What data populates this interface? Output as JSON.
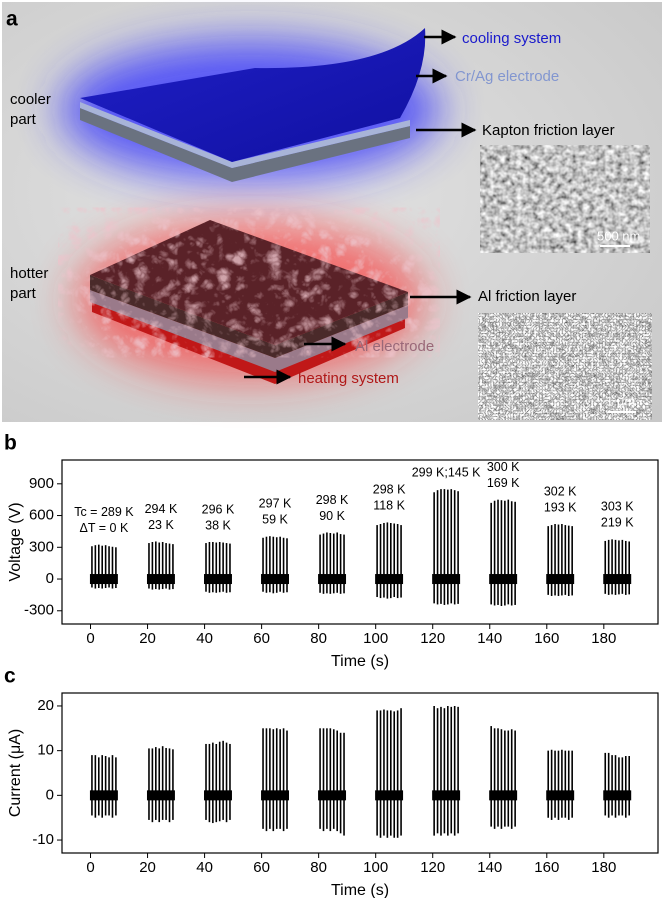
{
  "panel_a": {
    "panel": "a",
    "cooling_system": "cooling system",
    "cr_ag_electrode": "Cr/Ag electrode",
    "cooler_part": [
      "cooler",
      "part"
    ],
    "kapton_layer": "Kapton friction layer",
    "scale_1": "500 nm",
    "hotter_part": [
      "hotter",
      "part"
    ],
    "al_friction_layer": "Al friction layer",
    "al_electrode": "Al electrode",
    "heating_system": "heating system",
    "scale_2": "1 μm"
  },
  "chart_data": [
    {
      "type": "spikes",
      "panel": "b",
      "x_label": "Time (s)",
      "y_label": "Voltage (V)",
      "xlim": [
        -10,
        199
      ],
      "ylim": [
        -425,
        1125
      ],
      "xticks": [
        0,
        20,
        40,
        60,
        80,
        100,
        120,
        140,
        160,
        180
      ],
      "yticks": [
        -300,
        0,
        300,
        600,
        900
      ],
      "groups": [
        {
          "label": [
            "Tc = 289 K",
            "ΔT = 0 K"
          ],
          "x": [
            0.5,
            1.7,
            2.9,
            4.1,
            5.3,
            6.5,
            7.7,
            8.9
          ],
          "high": [
            310,
            320,
            325,
            315,
            320,
            310,
            305,
            300
          ],
          "low": [
            -80,
            -90,
            -85,
            -90,
            -85,
            -80,
            -90,
            -85
          ]
        },
        {
          "label": [
            "294 K",
            "23 K"
          ],
          "x": [
            20.5,
            21.7,
            22.9,
            24.1,
            25.3,
            26.5,
            27.7,
            28.9
          ],
          "high": [
            340,
            350,
            355,
            345,
            350,
            340,
            335,
            330
          ],
          "low": [
            -90,
            -100,
            -95,
            -100,
            -95,
            -90,
            -100,
            -95
          ]
        },
        {
          "label": [
            "296 K",
            "38 K"
          ],
          "x": [
            40.5,
            41.7,
            42.9,
            44.1,
            45.3,
            46.5,
            47.7,
            48.9
          ],
          "high": [
            340,
            350,
            350,
            345,
            350,
            345,
            340,
            335
          ],
          "low": [
            -120,
            -130,
            -125,
            -130,
            -125,
            -120,
            -130,
            -125
          ]
        },
        {
          "label": [
            "297 K",
            "59 K"
          ],
          "x": [
            60.5,
            61.7,
            62.9,
            64.1,
            65.3,
            66.5,
            67.7,
            68.9
          ],
          "high": [
            390,
            400,
            405,
            400,
            395,
            400,
            390,
            385
          ],
          "low": [
            -120,
            -130,
            -125,
            -135,
            -130,
            -120,
            -130,
            -125
          ]
        },
        {
          "label": [
            "298 K",
            "90 K"
          ],
          "x": [
            80.5,
            81.7,
            82.9,
            84.1,
            85.3,
            86.5,
            87.7,
            88.9
          ],
          "high": [
            420,
            430,
            440,
            435,
            430,
            440,
            425,
            420
          ],
          "low": [
            -130,
            -140,
            -135,
            -140,
            -135,
            -130,
            -140,
            -135
          ]
        },
        {
          "label": [
            "298 K",
            "118 K"
          ],
          "x": [
            100.5,
            101.7,
            102.9,
            104.1,
            105.3,
            106.5,
            107.7,
            108.9
          ],
          "high": [
            510,
            520,
            530,
            535,
            530,
            525,
            520,
            510
          ],
          "low": [
            -170,
            -180,
            -175,
            -185,
            -180,
            -170,
            -180,
            -175
          ]
        },
        {
          "label": [
            "299 K;145 K"
          ],
          "x": [
            120.5,
            121.7,
            122.9,
            124.1,
            125.3,
            126.5,
            127.7,
            128.9
          ],
          "high": [
            820,
            840,
            850,
            850,
            845,
            850,
            840,
            830
          ],
          "low": [
            -230,
            -240,
            -235,
            -245,
            -240,
            -230,
            -240,
            -235
          ]
        },
        {
          "label": [
            "300 K",
            "169 K"
          ],
          "x": [
            140.5,
            141.7,
            142.9,
            144.1,
            145.3,
            146.5,
            147.7,
            148.9
          ],
          "high": [
            720,
            740,
            750,
            745,
            740,
            750,
            735,
            730
          ],
          "low": [
            -240,
            -250,
            -245,
            -255,
            -250,
            -240,
            -250,
            -245
          ]
        },
        {
          "label": [
            "302 K",
            "193 K"
          ],
          "x": [
            160.5,
            161.7,
            162.9,
            164.1,
            165.3,
            166.5,
            167.7,
            168.9
          ],
          "high": [
            500,
            510,
            520,
            515,
            520,
            510,
            505,
            500
          ],
          "low": [
            -150,
            -160,
            -155,
            -160,
            -155,
            -150,
            -160,
            -155
          ]
        },
        {
          "label": [
            "303 K",
            "219 K"
          ],
          "x": [
            180.5,
            181.7,
            182.9,
            184.1,
            185.3,
            186.5,
            187.7,
            188.9
          ],
          "high": [
            360,
            370,
            375,
            370,
            365,
            370,
            360,
            355
          ],
          "low": [
            -140,
            -150,
            -145,
            -150,
            -145,
            -140,
            -150,
            -145
          ]
        }
      ]
    },
    {
      "type": "spikes",
      "panel": "c",
      "x_label": "Time (s)",
      "y_label": "Current (μA)",
      "xlim": [
        -10,
        199
      ],
      "ylim": [
        -12.9,
        22.9
      ],
      "xticks": [
        0,
        20,
        40,
        60,
        80,
        100,
        120,
        140,
        160,
        180
      ],
      "yticks": [
        -10,
        0,
        10,
        20
      ],
      "groups": [
        {
          "x": [
            0.5,
            1.7,
            2.9,
            4.1,
            5.3,
            6.5,
            7.7,
            8.9
          ],
          "high": [
            9,
            9,
            8.5,
            9,
            8.8,
            8.5,
            9,
            8.5
          ],
          "low": [
            -4.5,
            -5,
            -4.5,
            -5,
            -4.5,
            -4.5,
            -5,
            -4.5
          ]
        },
        {
          "x": [
            20.5,
            21.7,
            22.9,
            24.1,
            25.3,
            26.5,
            27.7,
            28.9
          ],
          "high": [
            10.5,
            10.5,
            10.8,
            10.5,
            11,
            10.6,
            10.5,
            10.3
          ],
          "low": [
            -5.5,
            -6,
            -5.5,
            -6,
            -5.5,
            -5.5,
            -6,
            -5.5
          ]
        },
        {
          "x": [
            40.5,
            41.7,
            42.9,
            44.1,
            45.3,
            46.5,
            47.7,
            48.9
          ],
          "high": [
            11.5,
            11.5,
            11.8,
            11.5,
            12,
            12.2,
            11.8,
            11.5
          ],
          "low": [
            -5.5,
            -6,
            -6.2,
            -6,
            -5.8,
            -5.5,
            -6,
            -5.5
          ]
        },
        {
          "x": [
            60.5,
            61.7,
            62.9,
            64.1,
            65.3,
            66.5,
            67.7,
            68.9
          ],
          "high": [
            15,
            15,
            15,
            14.8,
            15,
            14.8,
            15,
            14.5
          ],
          "low": [
            -7.5,
            -8,
            -7.5,
            -8,
            -7.5,
            -7.5,
            -8,
            -7.5
          ]
        },
        {
          "x": [
            80.5,
            81.7,
            82.9,
            84.1,
            85.3,
            86.5,
            87.7,
            88.9
          ],
          "high": [
            15,
            15,
            15,
            15,
            14.8,
            14.5,
            14,
            14
          ],
          "low": [
            -7.5,
            -8,
            -7.5,
            -8,
            -7.5,
            -8,
            -8.5,
            -9
          ]
        },
        {
          "x": [
            100.5,
            101.7,
            102.9,
            104.1,
            105.3,
            106.5,
            107.7,
            108.9
          ],
          "high": [
            19,
            19,
            19.2,
            19,
            19,
            18.8,
            19,
            19.5
          ],
          "low": [
            -9,
            -9.5,
            -9,
            -9.5,
            -9,
            -9.5,
            -9.5,
            -9
          ]
        },
        {
          "x": [
            120.5,
            121.7,
            122.9,
            124.1,
            125.3,
            126.5,
            127.7,
            128.9
          ],
          "high": [
            20,
            19.5,
            19.8,
            19.5,
            20,
            19.8,
            20,
            19.8
          ],
          "low": [
            -9,
            -8.5,
            -9,
            -8.5,
            -9,
            -8.5,
            -9,
            -8.5
          ]
        },
        {
          "x": [
            140.5,
            141.7,
            142.9,
            144.1,
            145.3,
            146.5,
            147.7,
            148.9
          ],
          "high": [
            15.5,
            15,
            15,
            14.8,
            14.5,
            14.5,
            14.8,
            14.5
          ],
          "low": [
            -7,
            -7.5,
            -7,
            -7.5,
            -7,
            -7,
            -7.5,
            -7
          ]
        },
        {
          "x": [
            160.5,
            161.7,
            162.9,
            164.1,
            165.3,
            166.5,
            167.7,
            168.9
          ],
          "high": [
            10,
            10.2,
            10,
            10,
            10.2,
            10,
            10,
            10
          ],
          "low": [
            -5,
            -5.5,
            -5,
            -5.5,
            -5,
            -5,
            -5.5,
            -5
          ]
        },
        {
          "x": [
            180.5,
            181.7,
            182.9,
            184.1,
            185.3,
            186.5,
            187.7,
            188.9
          ],
          "high": [
            9.5,
            9.5,
            9,
            9,
            8.5,
            8.5,
            8.8,
            8.8
          ],
          "low": [
            -4.5,
            -5,
            -4.5,
            -5,
            -4.5,
            -4.5,
            -5,
            -4.5
          ]
        }
      ]
    }
  ]
}
